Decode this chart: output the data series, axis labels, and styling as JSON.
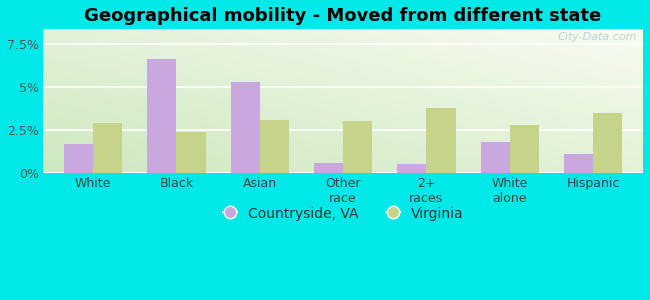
{
  "title": "Geographical mobility - Moved from different state",
  "categories": [
    "White",
    "Black",
    "Asian",
    "Other\nrace",
    "2+\nraces",
    "White\nalone",
    "Hispanic"
  ],
  "countryside_va": [
    1.7,
    6.6,
    5.3,
    0.6,
    0.5,
    1.8,
    1.1
  ],
  "virginia": [
    2.9,
    2.4,
    3.1,
    3.0,
    3.8,
    2.8,
    3.5
  ],
  "bar_color_countryside": "#c9a8e0",
  "bar_color_virginia": "#c5d48a",
  "background_outer": "#00e8e8",
  "ylim": [
    0,
    8.34
  ],
  "yticks": [
    0,
    2.5,
    5.0,
    7.5
  ],
  "ytick_labels": [
    "0%",
    "2.5%",
    "5%",
    "7.5%"
  ],
  "legend_labels": [
    "Countryside, VA",
    "Virginia"
  ],
  "watermark": "City-Data.com",
  "bar_width": 0.35,
  "title_fontsize": 13,
  "tick_fontsize": 9,
  "legend_fontsize": 10
}
